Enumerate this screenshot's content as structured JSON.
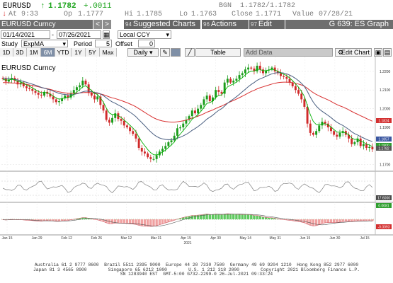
{
  "quote": {
    "ticker": "EURUSD",
    "last": "1.1782",
    "change": "+.0011",
    "at_label": "At",
    "at": "9:33",
    "open_label": "Op",
    "open": "1.1777",
    "high_label": "Hi",
    "high": "1.1785",
    "low_label": "Lo",
    "low": "1.1763",
    "bgn_label": "BGN",
    "bgn": "1.1782/1.1782",
    "close_label": "Close",
    "close": "1.1771",
    "value_label": "Value",
    "value_date": "07/28/21"
  },
  "toolbar": {
    "security": "EURUSD Curncy",
    "prev_label": "<",
    "next_label": ">",
    "menu1_num": "94",
    "menu1_label": "Suggested Charts",
    "menu2_num": "96",
    "menu2_label": "Actions",
    "menu3_num": "97",
    "menu3_label": "Edit",
    "graph_title": "G 639: ES Graph",
    "date_from": "01/14/2021",
    "date_to": "07/26/2021",
    "date_sep": "-",
    "currency": "Local CCY",
    "study_label": "Study",
    "study_value": "ExpMA",
    "period_label": "Period",
    "period_value": "5",
    "offset_label": "Offset",
    "offset_value": "0",
    "ranges": [
      "1D",
      "3D",
      "1M",
      "6M",
      "YTD",
      "1Y",
      "5Y",
      "Max"
    ],
    "active_range": "6M",
    "frequency": "Daily",
    "table_label": "Table",
    "add_data_label": "Add Data",
    "edit_chart_label": "Edit Chart"
  },
  "chart_data": {
    "type": "line",
    "title": "EURUSD Curncy",
    "x_tick_labels": [
      "Jan 15",
      "Jan 29",
      "Feb 12",
      "Feb 26",
      "Mar 12",
      "Mar 31",
      "Apr 15",
      "Apr 30",
      "May 14",
      "May 31",
      "Jun 15",
      "Jun 30",
      "Jul 15"
    ],
    "x_year_label": "2021",
    "y_tick_labels": [
      "1.2200",
      "1.2100",
      "1.2000",
      "1.1900",
      "1.1800",
      "1.1700"
    ],
    "ylim": [
      1.168,
      1.226
    ],
    "price_tags": [
      "1.1824",
      "1.1857",
      "1.1800",
      "1.1782"
    ],
    "mid_panel_tags": [
      "17.6000"
    ],
    "lower_panel_tags": [
      "0.0081",
      "-0.0093"
    ],
    "colors": {
      "up_candle": "#1a9c1a",
      "down_candle": "#d02a2a",
      "ema_short": "#00b000",
      "ma_mid": "#4a5f80",
      "ma_long": "#d83030",
      "hist_pos": "#5fc95f",
      "hist_neg": "#f0a0a0",
      "osc_line": "#808080",
      "tag_red": "#d32f2f",
      "tag_blue": "#3a56a0",
      "tag_green": "#2e9e2e",
      "tag_dark": "#555555"
    },
    "series": [
      {
        "role": "ohlc",
        "close": [
          1.216,
          1.2145,
          1.2155,
          1.2165,
          1.215,
          1.213,
          1.214,
          1.212,
          1.211,
          1.2105,
          1.2095,
          1.2085,
          1.2075,
          1.207,
          1.209,
          1.208,
          1.2065,
          1.205,
          1.2035,
          1.204,
          1.2055,
          1.207,
          1.206,
          1.208,
          1.21,
          1.2115,
          1.2125,
          1.215,
          1.213,
          1.2085,
          1.207,
          1.205,
          1.2065,
          1.202,
          1.199,
          1.194,
          1.1925,
          1.195,
          1.1975,
          1.1945,
          1.1935,
          1.191,
          1.19,
          1.188,
          1.1865,
          1.184,
          1.179,
          1.177,
          1.176,
          1.174,
          1.173,
          1.173,
          1.175,
          1.177,
          1.1785,
          1.18,
          1.182,
          1.183,
          1.1855,
          1.1895,
          1.19,
          1.192,
          1.194,
          1.196,
          1.199,
          1.1975,
          1.2,
          1.202,
          1.205,
          1.207,
          1.204,
          1.206,
          1.21,
          1.209,
          1.208,
          1.214,
          1.216,
          1.214,
          1.215,
          1.216,
          1.218,
          1.219,
          1.221,
          1.222,
          1.2215,
          1.22,
          1.223,
          1.221,
          1.219,
          1.2205,
          1.221,
          1.222,
          1.22,
          1.219,
          1.2175,
          1.217,
          1.216,
          1.214,
          1.212,
          1.21,
          1.208,
          1.205,
          1.201,
          1.192,
          1.187,
          1.186,
          1.188,
          1.191,
          1.193,
          1.192,
          1.19,
          1.188,
          1.186,
          1.185,
          1.187,
          1.188,
          1.186,
          1.184,
          1.181,
          1.182,
          1.184,
          1.18,
          1.181,
          1.179,
          1.1795,
          1.1782
        ],
        "open_hint": "open = previous close"
      },
      {
        "role": "ema_short",
        "values": [
          1.2158,
          1.2153,
          1.2154,
          1.2158,
          1.2155,
          1.2146,
          1.2144,
          1.2136,
          1.2127,
          1.212,
          1.2111,
          1.2102,
          1.2093,
          1.2085,
          1.2087,
          1.2085,
          1.2078,
          1.2068,
          1.2057,
          1.2051,
          1.2053,
          1.2059,
          1.2059,
          1.2066,
          1.2077,
          1.209,
          1.2102,
          1.2118,
          1.2122,
          1.211,
          1.2097,
          1.2081,
          1.2076,
          1.2057,
          1.2035,
          1.2003,
          1.1977,
          1.1968,
          1.197,
          1.1962,
          1.1953,
          1.1939,
          1.1926,
          1.1911,
          1.1896,
          1.1877,
          1.1848,
          1.1822,
          1.1801,
          1.1781,
          1.1764,
          1.1753,
          1.1752,
          1.1758,
          1.1767,
          1.1778,
          1.1792,
          1.1805,
          1.1822,
          1.1846,
          1.1864,
          1.1883,
          1.1902,
          1.1921,
          1.1944,
          1.1954,
          1.1969,
          1.1986,
          1.2007,
          1.2028,
          1.2032,
          1.2041,
          1.2061,
          1.2071,
          1.2074,
          1.2096,
          1.2117,
          1.2125,
          1.2133,
          1.2142,
          1.2155,
          1.2166,
          1.2181,
          1.2194,
          1.2201,
          1.2201,
          1.2211,
          1.221,
          1.2203,
          1.2204,
          1.2206,
          1.2211,
          1.2207,
          1.2201,
          1.2192,
          1.2185,
          1.2177,
          1.2165,
          1.215,
          1.2133,
          1.2115,
          1.2093,
          1.2065,
          1.2017,
          1.1968,
          1.1932,
          1.1915,
          1.1913,
          1.1919,
          1.1919,
          1.1913,
          1.1902,
          1.1888,
          1.1875,
          1.1873,
          1.1875,
          1.187,
          1.186,
          1.1843,
          1.1835,
          1.1837,
          1.1825,
          1.182,
          1.181,
          1.1805,
          1.1797
        ]
      },
      {
        "role": "ma_mid",
        "values": [
          1.2165,
          1.2163,
          1.2161,
          1.2159,
          1.2157,
          1.2154,
          1.215,
          1.2146,
          1.2141,
          1.2136,
          1.2131,
          1.2126,
          1.212,
          1.2114,
          1.211,
          1.2105,
          1.21,
          1.2094,
          1.2088,
          1.2082,
          1.2078,
          1.2076,
          1.2074,
          1.2074,
          1.2076,
          1.208,
          1.2084,
          1.209,
          1.2094,
          1.2093,
          1.2091,
          1.2087,
          1.2085,
          1.2079,
          1.207,
          1.2058,
          1.2046,
          1.2036,
          1.2029,
          1.202,
          1.2012,
          1.2002,
          1.1992,
          1.1981,
          1.197,
          1.1957,
          1.1941,
          1.1925,
          1.1909,
          1.1892,
          1.1876,
          1.1862,
          1.1851,
          1.1843,
          1.1838,
          1.1835,
          1.1834,
          1.1834,
          1.1836,
          1.1842,
          1.1847,
          1.1854,
          1.1862,
          1.1872,
          1.1884,
          1.1893,
          1.1904,
          1.1916,
          1.193,
          1.1944,
          1.1954,
          1.1965,
          1.1979,
          1.1991,
          1.2,
          1.2014,
          1.2029,
          1.2041,
          1.2052,
          1.2064,
          1.2077,
          1.209,
          1.2104,
          1.2118,
          1.213,
          1.214,
          1.2152,
          1.216,
          1.2166,
          1.2173,
          1.218,
          1.2187,
          1.2191,
          1.2193,
          1.2193,
          1.2191,
          1.2187,
          1.218,
          1.2172,
          1.2162,
          1.215,
          1.2136,
          1.2119,
          1.2092,
          1.2062,
          1.2035,
          1.2014,
          1.1998,
          1.1986,
          1.1975,
          1.1964,
          1.1952,
          1.1939,
          1.1927,
          1.1918,
          1.191,
          1.19,
          1.1889,
          1.1876,
          1.1866,
          1.1859,
          1.185,
          1.1843,
          1.1835,
          1.1829,
          1.1824
        ]
      },
      {
        "role": "ma_long",
        "values": [
          1.214,
          1.214,
          1.2139,
          1.2138,
          1.2137,
          1.2135,
          1.2134,
          1.2132,
          1.213,
          1.2127,
          1.2124,
          1.2121,
          1.2117,
          1.2113,
          1.211,
          1.2107,
          1.2103,
          1.2099,
          1.2094,
          1.209,
          1.2087,
          1.2085,
          1.2083,
          1.2082,
          1.2082,
          1.2083,
          1.2084,
          1.2086,
          1.2087,
          1.2086,
          1.2085,
          1.2083,
          1.2082,
          1.2079,
          1.2075,
          1.2069,
          1.2063,
          1.2058,
          1.2054,
          1.2049,
          1.2044,
          1.2038,
          1.2032,
          1.2025,
          1.2018,
          1.201,
          1.2,
          1.199,
          1.198,
          1.197,
          1.196,
          1.1951,
          1.1944,
          1.1938,
          1.1934,
          1.1931,
          1.1929,
          1.1928,
          1.1928,
          1.193,
          1.1932,
          1.1935,
          1.1939,
          1.1944,
          1.195,
          1.1954,
          1.196,
          1.1966,
          1.1973,
          1.1981,
          1.1987,
          1.1993,
          1.2001,
          1.2008,
          1.2014,
          1.2022,
          1.203,
          1.2037,
          1.2044,
          1.2051,
          1.2059,
          1.2067,
          1.2075,
          1.2084,
          1.2092,
          1.2098,
          1.2106,
          1.2112,
          1.2117,
          1.2122,
          1.2127,
          1.2132,
          1.2136,
          1.2139,
          1.2141,
          1.2142,
          1.2142,
          1.2141,
          1.2139,
          1.2136,
          1.2132,
          1.2127,
          1.212,
          1.2109,
          1.2097,
          1.2086,
          1.2076,
          1.2068,
          1.2061,
          1.2054,
          1.2047,
          1.2039,
          1.203,
          1.2022,
          1.2015,
          1.2009,
          1.2002,
          1.1994,
          1.1985,
          1.1977,
          1.197,
          1.1962,
          1.1955,
          1.1947,
          1.194,
          1.1933
        ]
      }
    ]
  },
  "footer": {
    "line1": "Australia 61 2 9777 8600  Brazil 5511 2395 9000  Europe 44 20 7330 7500  Germany 49 69 9204 1210  Hong Kong 852 2977 6000",
    "line2": "Japan 81 3 4565 8900        Singapore 65 6212 1000        U.S. 1 212 318 2000        Copyright 2021 Bloomberg Finance L.P.",
    "line3": "SN 1283940 EST  GMT-5:00 G732-2299-0 26-Jul-2021 09:33:24"
  }
}
